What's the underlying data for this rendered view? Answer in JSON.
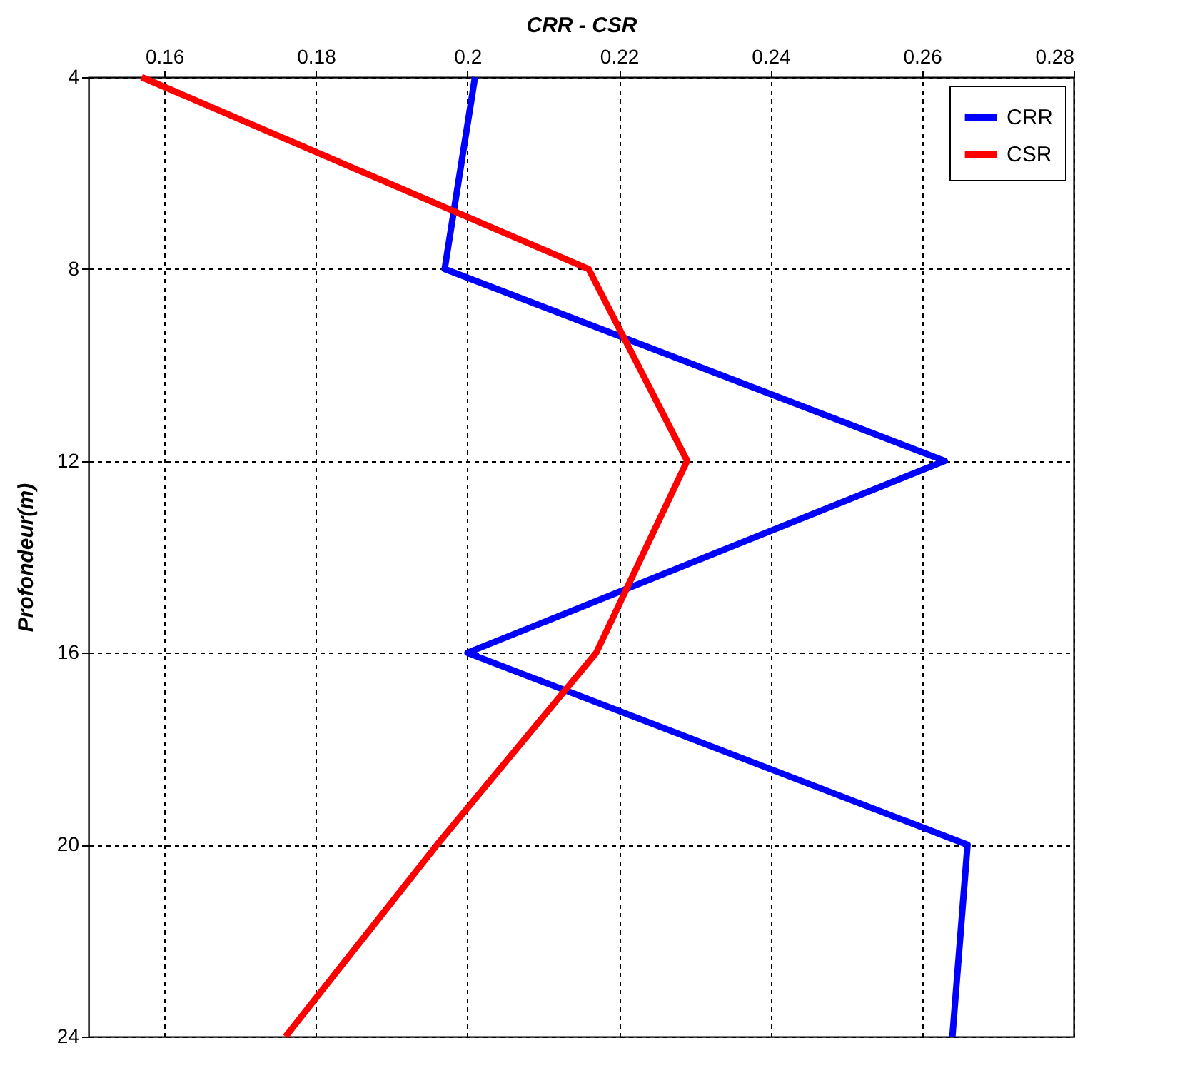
{
  "chart_data": {
    "type": "line",
    "xlabel": "CRR - CSR",
    "ylabel": "Profondeur(m)",
    "series": [
      {
        "name": "CRR",
        "color": "#0000ff",
        "x": [
          0.201,
          0.197,
          0.263,
          0.2,
          0.266,
          0.264
        ],
        "values": [
          4,
          8,
          12,
          16,
          20,
          24
        ]
      },
      {
        "name": "CSR",
        "color": "#ff0000",
        "x": [
          0.157,
          0.216,
          0.229,
          0.217,
          0.196,
          0.176
        ],
        "values": [
          4,
          8,
          12,
          16,
          20,
          24
        ]
      }
    ],
    "xlim": [
      0.15,
      0.28
    ],
    "xticks": [
      0.16,
      0.18,
      {
        "value": 0.2,
        "label": "0.2"
      },
      0.22,
      0.24,
      0.26,
      0.28
    ],
    "ylim": [
      24,
      4
    ],
    "yticks": [
      4,
      8,
      12,
      16,
      20,
      24
    ],
    "grid": true,
    "legend": "top right",
    "line_style": "solid"
  }
}
